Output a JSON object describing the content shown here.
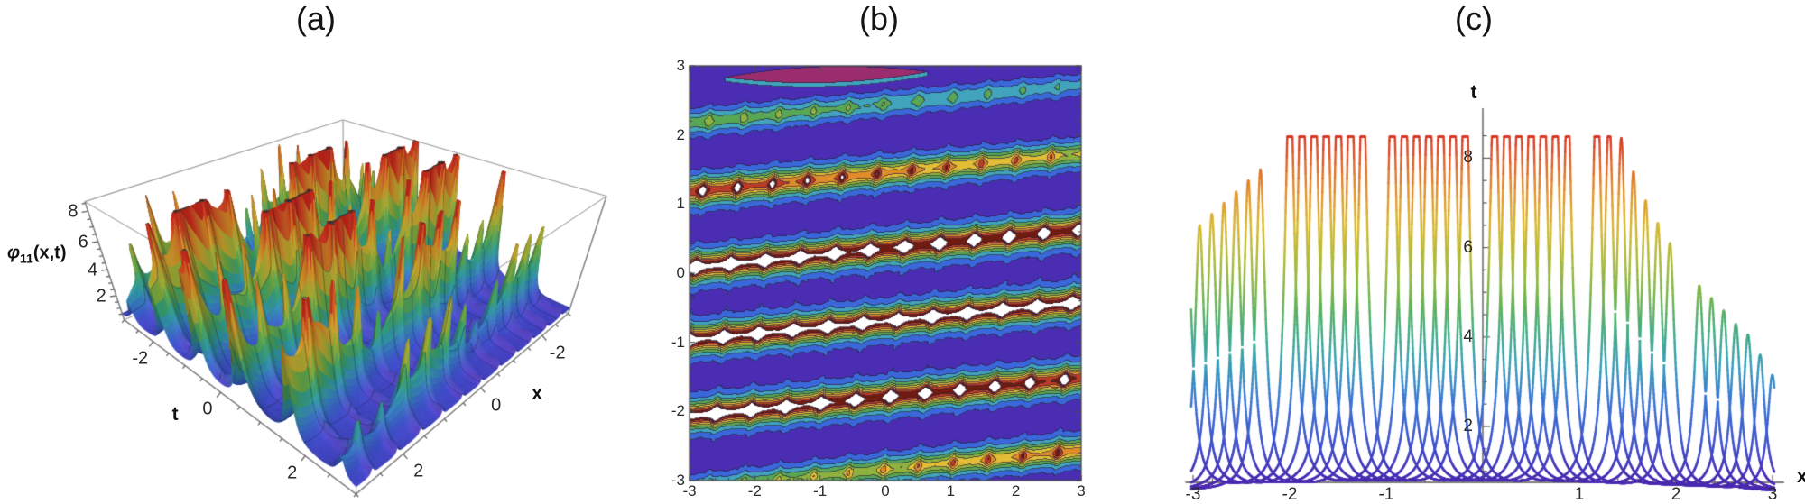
{
  "figure": {
    "background": "#ffffff"
  },
  "chart_data": [
    {
      "type": "surface3d",
      "panel_label": "(a)",
      "axes": {
        "z_label": {
          "symbol": "φ",
          "subscript": "11",
          "arguments": "(x,t)"
        },
        "t_label": "t",
        "x_label": "x",
        "t_ticks": [
          -2,
          0,
          2
        ],
        "x_ticks": [
          -2,
          0,
          2
        ],
        "z_ticks": [
          2,
          4,
          6,
          8
        ],
        "t_range": [
          -3,
          3
        ],
        "x_range": [
          -3,
          3
        ],
        "z_range": [
          0,
          8
        ]
      },
      "clip_level": 8.6,
      "base_level": 0.42,
      "ridge_slope": 0.092,
      "spike_period": 0.53,
      "ridges": [
        {
          "t0": -2.85,
          "height": 6.2
        },
        {
          "t0": -1.8,
          "height": 13.0
        },
        {
          "t0": -0.7,
          "height": 13.5
        },
        {
          "t0": 0.35,
          "height": 13.0
        },
        {
          "t0": 1.45,
          "height": 9.2
        },
        {
          "t0": 2.45,
          "height": 4.6
        }
      ],
      "colormap": [
        [
          0,
          "#4a33c8"
        ],
        [
          1,
          "#3f55d8"
        ],
        [
          1.8,
          "#3b82d8"
        ],
        [
          2.6,
          "#37a8b8"
        ],
        [
          3.4,
          "#3fae7a"
        ],
        [
          4.2,
          "#72b74c"
        ],
        [
          5,
          "#b2bc3c"
        ],
        [
          5.8,
          "#ddb233"
        ],
        [
          6.6,
          "#e28e2a"
        ],
        [
          7.4,
          "#df5c28"
        ],
        [
          8.1,
          "#d93122"
        ],
        [
          8.45,
          "#d02a1e"
        ]
      ],
      "clip_color": "#d6d6d6",
      "box_color": "#9a9a9a"
    },
    {
      "type": "contour",
      "panel_label": "(b)",
      "x_range": [
        -3,
        3
      ],
      "y_range": [
        -3,
        3
      ],
      "x_ticks": [
        -3,
        -2,
        -1,
        0,
        1,
        2,
        3
      ],
      "y_ticks": [
        3,
        2,
        1,
        0,
        -1,
        -2,
        -3
      ],
      "stripe_slope": 0.092,
      "stripes": [
        {
          "y0": 2.45,
          "intensity": 1.5,
          "intensity_gradient": -0.12
        },
        {
          "y0": 1.45,
          "intensity": 3.3,
          "intensity_gradient": -0.25
        },
        {
          "y0": 0.35,
          "intensity": 4.7,
          "intensity_gradient": -0.1
        },
        {
          "y0": -0.7,
          "intensity": 4.85,
          "intensity_gradient": 0
        },
        {
          "y0": -1.8,
          "intensity": 4.6,
          "intensity_gradient": -0.15
        },
        {
          "y0": -2.85,
          "intensity": 2.5,
          "intensity_gradient": 0.3
        }
      ],
      "band_thresholds": [
        0.45,
        0.85,
        1.3,
        1.75,
        2.2,
        2.65,
        3.1,
        3.55,
        4.0
      ],
      "band_colors": [
        "#4b2db3",
        "#3a67d9",
        "#41a3bc",
        "#57a754",
        "#8fb23f",
        "#e2bd35",
        "#e18c2b",
        "#c03b24",
        "#701b0f",
        "#ffffff"
      ],
      "contour_line_color": "#26203a",
      "magenta_lens": {
        "x_center": -0.9,
        "x_half_span": 1.55,
        "y_center_left": 2.835,
        "y_center_right": 2.915,
        "max_half_width": 0.115,
        "color": "#9b2d6e"
      },
      "frame_color": "#4a4a4a"
    },
    {
      "type": "multi_line",
      "panel_label": "(c)",
      "x_label": "x",
      "y_label": "t",
      "x_range": [
        -3,
        3
      ],
      "x_ticks_labeled": [
        -3,
        -2,
        -1,
        1,
        2,
        3
      ],
      "y_ticks": [
        2,
        4,
        6,
        8
      ],
      "clip_level": 8.48,
      "base_level": 0.55,
      "peak_width": 0.06,
      "curve_offset_step": 0.126,
      "cluster_centers": [
        -2.68,
        -1.62,
        -0.56,
        0.5,
        1.56,
        2.62
      ],
      "curves": [
        {
          "peak_heights": [
            5.7,
            9.6,
            9.8,
            9.8,
            9.5,
            4.6
          ]
        },
        {
          "peak_heights": [
            5.95,
            9.8,
            9.8,
            9.8,
            8.42,
            4.32
          ]
        },
        {
          "peak_heights": [
            6.2,
            9.8,
            9.8,
            9.8,
            7.9,
            4.04
          ]
        },
        {
          "peak_heights": [
            6.45,
            9.8,
            9.8,
            9.8,
            7.15,
            3.74
          ]
        },
        {
          "peak_heights": [
            6.7,
            9.8,
            9.8,
            9.8,
            6.5,
            3.5
          ]
        },
        {
          "peak_heights": [
            6.95,
            9.8,
            9.8,
            9.6,
            6.0,
            3.05
          ]
        },
        {
          "peak_heights": [
            7.2,
            9.4,
            9.8,
            8.9,
            5.55,
            2.6
          ]
        }
      ],
      "colormap": [
        [
          0.75,
          "#4b2bb0"
        ],
        [
          1.6,
          "#3f51cc"
        ],
        [
          2.6,
          "#3b77d4"
        ],
        [
          3.4,
          "#38a0b8"
        ],
        [
          4.2,
          "#47ad7d"
        ],
        [
          5,
          "#7ab648"
        ],
        [
          5.8,
          "#b3bb3b"
        ],
        [
          6.5,
          "#d9b832"
        ],
        [
          7.2,
          "#e2952c"
        ],
        [
          7.9,
          "#e0642a"
        ],
        [
          8.5,
          "#d93425"
        ]
      ],
      "axis_color": "#4f4f4f"
    }
  ]
}
